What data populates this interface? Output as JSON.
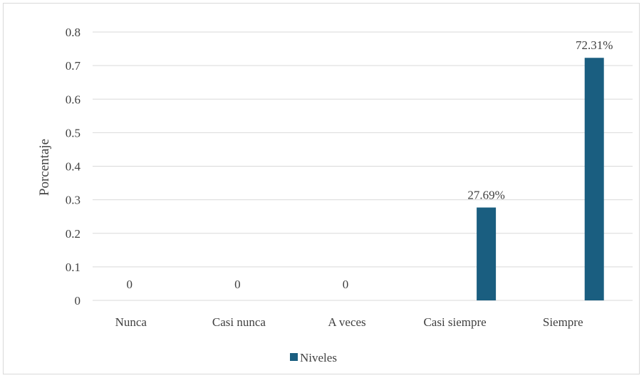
{
  "chart_data": {
    "type": "bar",
    "categories": [
      "Nunca",
      "Casi nunca",
      "A veces",
      "Casi siempre",
      "Siempre"
    ],
    "series": [
      {
        "name": "Niveles",
        "values": [
          0,
          0,
          0,
          0.2769,
          0.7231
        ],
        "data_labels": [
          "0",
          "0",
          "0",
          "27.69%",
          "72.31%"
        ]
      }
    ],
    "ylabel": "Porcentaje",
    "xlabel": "",
    "ylim": [
      0,
      0.8
    ],
    "yticks": [
      "0",
      "0.1",
      "0.2",
      "0.3",
      "0.4",
      "0.5",
      "0.6",
      "0.7",
      "0.8"
    ],
    "grid": true,
    "legend_position": "bottom",
    "bar_color": "#1a5e80"
  }
}
